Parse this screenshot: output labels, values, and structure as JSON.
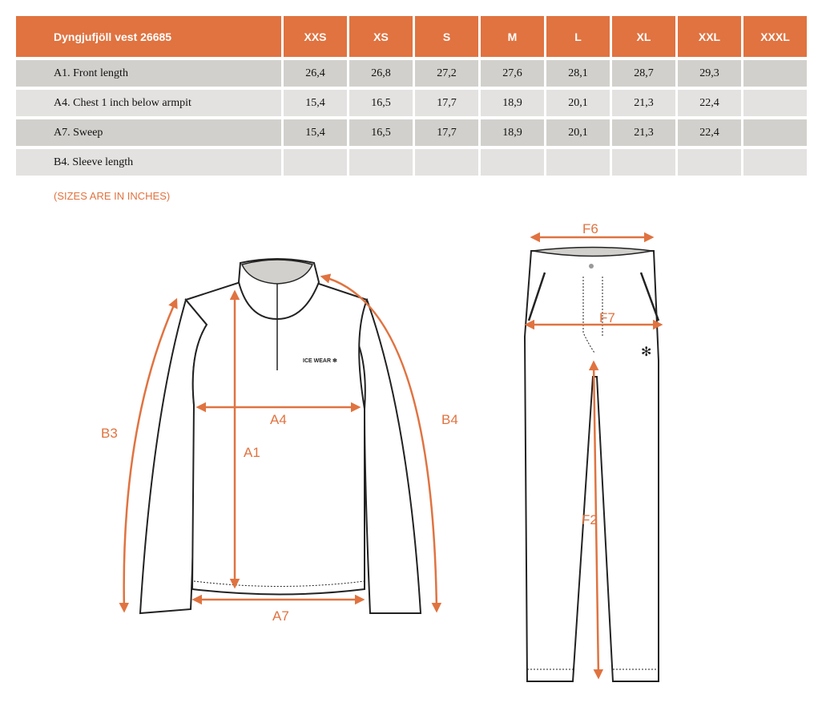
{
  "table": {
    "title": "Dyngjufjöll vest 26685",
    "sizes": [
      "XXS",
      "XS",
      "S",
      "M",
      "L",
      "XL",
      "XXL",
      "XXXL"
    ],
    "rows": [
      {
        "label": "A1. Front length",
        "values": [
          "26,4",
          "26,8",
          "27,2",
          "27,6",
          "28,1",
          "28,7",
          "29,3",
          ""
        ]
      },
      {
        "label": "A4. Chest 1 inch below armpit",
        "values": [
          "15,4",
          "16,5",
          "17,7",
          "18,9",
          "20,1",
          "21,3",
          "22,4",
          ""
        ]
      },
      {
        "label": "A7. Sweep",
        "values": [
          "15,4",
          "16,5",
          "17,7",
          "18,9",
          "20,1",
          "21,3",
          "22,4",
          ""
        ]
      },
      {
        "label": "B4. Sleeve length",
        "values": [
          "",
          "",
          "",
          "",
          "",
          "",
          "",
          ""
        ]
      }
    ]
  },
  "note": "(SIZES ARE IN INCHES)",
  "jacket": {
    "labels": {
      "b3": "B3",
      "b4": "B4",
      "a1": "A1",
      "a4": "A4",
      "a7": "A7"
    },
    "logo": "ICE WEAR"
  },
  "pants": {
    "labels": {
      "f6": "F6",
      "f7": "F7",
      "f2": "F2"
    }
  },
  "colors": {
    "accent": "#E07340",
    "row_dark": "#D1D0CC",
    "row_light": "#E3E2E0"
  }
}
